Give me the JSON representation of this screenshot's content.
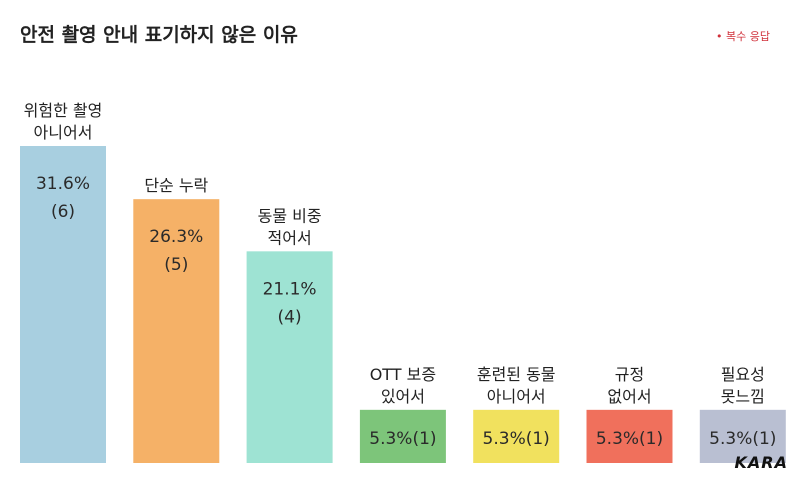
{
  "title": "안전 촬영 안내 표기하지 않은 이유",
  "note": "• 복수 응답",
  "logo": "KARA",
  "chart_data": {
    "type": "bar",
    "title": "안전 촬영 안내 표기하지 않은 이유",
    "categories": [
      [
        "위험한 촬영",
        "아니어서"
      ],
      [
        "단순 누락"
      ],
      [
        "동물 비중",
        "적어서"
      ],
      [
        "OTT 보증",
        "있어서"
      ],
      [
        "훈련된 동물",
        "아니어서"
      ],
      [
        "규정",
        "없어서"
      ],
      [
        "필요성",
        "못느낌"
      ]
    ],
    "values": [
      31.6,
      26.3,
      21.1,
      5.3,
      5.3,
      5.3,
      5.3
    ],
    "counts": [
      6,
      5,
      4,
      1,
      1,
      1,
      1
    ],
    "value_labels": [
      [
        "31.6%",
        "(6)"
      ],
      [
        "26.3%",
        "(5)"
      ],
      [
        "21.1%",
        "(4)"
      ],
      [
        "5.3%(1)"
      ],
      [
        "5.3%(1)"
      ],
      [
        "5.3%(1)"
      ],
      [
        "5.3%(1)"
      ]
    ],
    "colors": [
      "#a8cfe0",
      "#f5b167",
      "#9ee3d3",
      "#7dc57a",
      "#f1e15e",
      "#f0705c",
      "#b9bfd2"
    ],
    "ylim": [
      0,
      31.6
    ],
    "grid": false,
    "legend": "none"
  }
}
